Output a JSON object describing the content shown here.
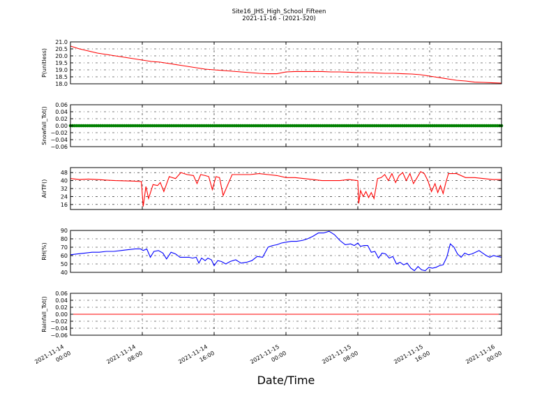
{
  "title_line1": "Site16_JHS_High_School_Fifteen",
  "title_line2": "2021-11-16 - (2021-320)",
  "xlabel": "Date/Time",
  "x_ticks": [
    {
      "l1": "2021-11-14",
      "l2": "00:00"
    },
    {
      "l1": "2021-11-14",
      "l2": "08:00"
    },
    {
      "l1": "2021-11-14",
      "l2": "16:00"
    },
    {
      "l1": "2021-11-15",
      "l2": "00:00"
    },
    {
      "l1": "2021-11-15",
      "l2": "08:00"
    },
    {
      "l1": "2021-11-15",
      "l2": "16:00"
    },
    {
      "l1": "2021-11-16",
      "l2": "00:00"
    }
  ],
  "colors": {
    "P": "#ff0000",
    "Snow": "#008000",
    "AirT": "#ff0000",
    "RH": "#0000ff",
    "Rain": "#ff0000"
  },
  "chart_data": [
    {
      "type": "line",
      "ylabel": "P(unitless)",
      "x_range_hours": [
        0,
        48
      ],
      "ylim": [
        18.0,
        21.0
      ],
      "yticks": [
        "18.0",
        "18.5",
        "19.0",
        "19.5",
        "20.0",
        "20.5",
        "21.0"
      ],
      "grid": true,
      "x_hours": [
        0,
        1,
        2,
        3,
        4,
        5,
        6,
        7,
        8,
        9,
        10,
        11,
        12,
        13,
        14,
        15,
        16,
        17,
        18,
        19,
        20,
        21,
        22,
        23,
        24,
        25,
        26,
        27,
        28,
        29,
        30,
        31,
        32,
        33,
        34,
        35,
        36,
        37,
        38,
        39,
        40,
        41,
        42,
        43,
        44,
        45,
        46,
        47,
        48
      ],
      "values": [
        20.7,
        20.5,
        20.35,
        20.2,
        20.1,
        20.0,
        19.9,
        19.8,
        19.7,
        19.6,
        19.55,
        19.45,
        19.35,
        19.25,
        19.15,
        19.05,
        19.0,
        18.95,
        18.9,
        18.85,
        18.8,
        18.75,
        18.72,
        18.72,
        18.85,
        18.88,
        18.88,
        18.88,
        18.88,
        18.85,
        18.85,
        18.83,
        18.8,
        18.8,
        18.78,
        18.75,
        18.75,
        18.72,
        18.7,
        18.65,
        18.55,
        18.45,
        18.35,
        18.25,
        18.2,
        18.12,
        18.1,
        18.07,
        18.05
      ]
    },
    {
      "type": "line",
      "ylabel": "Snowfall_Tot()",
      "x_range_hours": [
        0,
        48
      ],
      "ylim": [
        -0.06,
        0.06
      ],
      "yticks": [
        "−0.06",
        "−0.04",
        "−0.02",
        "0.00",
        "0.02",
        "0.04",
        "0.06"
      ],
      "grid": true,
      "marker": "dot",
      "x_hours": [
        0,
        1,
        2,
        3,
        4,
        5,
        6,
        7,
        8,
        9,
        10,
        11,
        12,
        13,
        14,
        15,
        16,
        17,
        18,
        19,
        20,
        21,
        22,
        23,
        24,
        25,
        26,
        27,
        28,
        29,
        30,
        31,
        32,
        33,
        34,
        35,
        36,
        37,
        38,
        39,
        40,
        41,
        42,
        43,
        44,
        45,
        46,
        47,
        48
      ],
      "values": [
        0,
        0,
        0,
        0,
        0,
        0,
        0,
        0,
        0,
        0,
        0,
        0,
        0,
        0,
        0,
        0,
        0,
        0,
        0,
        0,
        0,
        0,
        0,
        0,
        0,
        0,
        0,
        0,
        0,
        0,
        0,
        0,
        0,
        0,
        0,
        0,
        0,
        0,
        0,
        0,
        0,
        0,
        0,
        0,
        0,
        0,
        0,
        0,
        0
      ]
    },
    {
      "type": "line",
      "ylabel": "AirTF()",
      "x_range_hours": [
        0,
        48
      ],
      "ylim": [
        11,
        53
      ],
      "yticks": [
        "16",
        "24",
        "32",
        "40",
        "48"
      ],
      "grid": true,
      "x_hours": [
        0,
        1,
        2,
        3,
        4,
        5,
        6,
        7,
        7.9,
        8.1,
        8.4,
        8.7,
        9.2,
        9.7,
        10,
        10.4,
        11,
        11.7,
        12.3,
        13,
        13.7,
        14.1,
        14.5,
        15,
        15.4,
        15.8,
        16.2,
        16.6,
        17,
        18,
        19,
        20,
        21,
        22,
        23,
        24,
        25,
        26,
        27,
        28,
        29,
        30,
        31,
        32,
        32.1,
        32.3,
        32.6,
        32.9,
        33.2,
        33.5,
        33.8,
        34.2,
        34.6,
        35,
        35.4,
        35.8,
        36.2,
        36.6,
        37,
        37.4,
        37.8,
        38.2,
        38.6,
        39,
        39.4,
        39.8,
        40.2,
        40.6,
        40.9,
        41.2,
        41.5,
        41.8,
        42.1,
        42.5,
        43,
        44,
        45,
        46,
        47,
        48
      ],
      "values": [
        42,
        41,
        41.5,
        41,
        40.5,
        40,
        39.8,
        39.5,
        39,
        14,
        34,
        22,
        36,
        35,
        38,
        29,
        44,
        42,
        48,
        46,
        45,
        37,
        46,
        45,
        44,
        31,
        44,
        43,
        25,
        46,
        46,
        46,
        47,
        46,
        45,
        43,
        43,
        42,
        41,
        40,
        40,
        40,
        41,
        40,
        17,
        30,
        24,
        29,
        23,
        28,
        22,
        42,
        43,
        46,
        40,
        47,
        38,
        45,
        48,
        40,
        47,
        37,
        43,
        49,
        47,
        40,
        29,
        37,
        28,
        35,
        27,
        38,
        47,
        47,
        47,
        43,
        43,
        42,
        41,
        41
      ]
    },
    {
      "type": "line",
      "ylabel": "RH(%)",
      "x_range_hours": [
        0,
        48
      ],
      "ylim": [
        40,
        90
      ],
      "yticks": [
        "40",
        "50",
        "60",
        "70",
        "80",
        "90"
      ],
      "grid": true,
      "x_hours": [
        0,
        0.8,
        1.6,
        2.4,
        3.2,
        4,
        4.8,
        5.6,
        6.4,
        7.2,
        7.8,
        8.1,
        8.5,
        8.9,
        9.3,
        9.8,
        10.3,
        10.7,
        11.2,
        11.7,
        12.2,
        12.7,
        13.2,
        13.6,
        14,
        14.3,
        14.6,
        15,
        15.3,
        15.7,
        16,
        16.4,
        16.8,
        17.3,
        17.8,
        18.4,
        19,
        19.6,
        20.2,
        20.8,
        21.4,
        22,
        22.5,
        23,
        23.5,
        24,
        24.6,
        25.2,
        25.8,
        26.4,
        27,
        27.6,
        28.2,
        28.8,
        29.4,
        30,
        30.6,
        31.2,
        31.6,
        32,
        32.3,
        32.7,
        33.1,
        33.5,
        33.9,
        34.3,
        34.7,
        35.1,
        35.5,
        35.9,
        36.3,
        36.7,
        37.1,
        37.5,
        37.9,
        38.3,
        38.7,
        39.1,
        39.5,
        39.9,
        40.3,
        40.7,
        41.1,
        41.5,
        41.9,
        42.3,
        42.7,
        43.1,
        43.5,
        43.9,
        44.3,
        44.7,
        45.1,
        45.5,
        45.9,
        46.3,
        46.7,
        47.1,
        47.5,
        48
      ],
      "values": [
        61,
        62,
        63,
        64,
        64,
        65,
        65,
        66,
        67,
        68,
        68,
        66,
        68,
        58,
        65,
        66,
        63,
        56,
        64,
        62,
        58,
        58,
        58,
        57,
        58,
        51,
        57,
        54,
        57,
        55,
        48,
        54,
        53,
        50,
        53,
        55,
        51,
        52,
        54,
        59,
        58,
        70,
        72,
        73,
        75,
        76,
        77,
        77,
        78,
        80,
        83,
        87,
        87,
        89,
        85,
        78,
        73,
        74,
        72,
        75,
        71,
        72,
        72,
        64,
        65,
        57,
        63,
        62,
        57,
        59,
        50,
        52,
        49,
        51,
        45,
        42,
        47,
        43,
        42,
        46,
        45,
        46,
        48,
        49,
        58,
        74,
        70,
        62,
        58,
        63,
        61,
        62,
        64,
        66,
        63,
        60,
        58,
        60,
        59,
        58
      ]
    },
    {
      "type": "line",
      "ylabel": "Rainfall_Tot()",
      "x_range_hours": [
        0,
        48
      ],
      "ylim": [
        -0.06,
        0.06
      ],
      "yticks": [
        "−0.06",
        "−0.04",
        "−0.02",
        "0.00",
        "0.02",
        "0.04",
        "0.06"
      ],
      "grid": true,
      "x_hours": [
        0,
        48
      ],
      "values": [
        0,
        0
      ]
    }
  ]
}
